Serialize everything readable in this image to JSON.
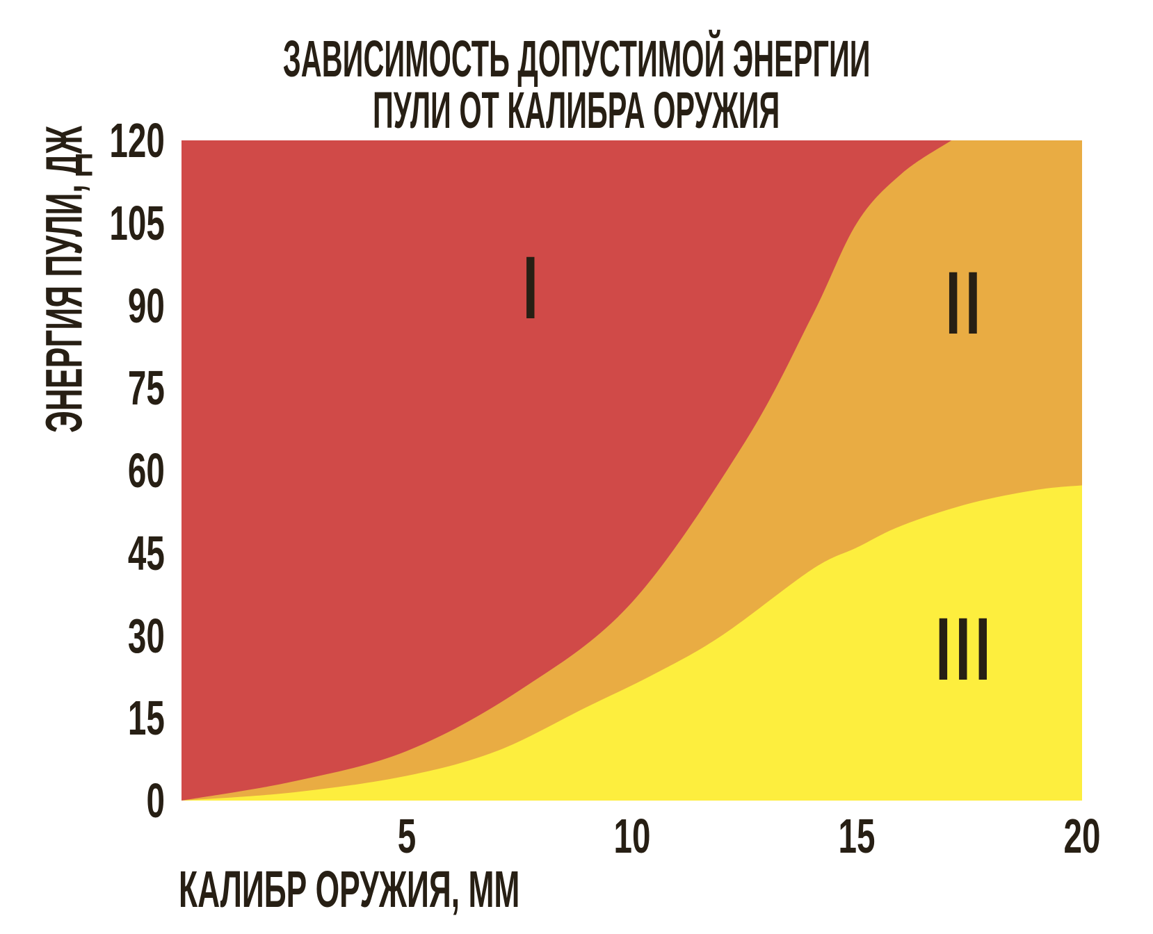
{
  "title": {
    "line1": "ЗАВИСИМОСТЬ ДОПУСТИМОЙ ЭНЕРГИИ",
    "line2": "ПУЛИ ОТ КАЛИБРА ОРУЖИЯ"
  },
  "axes": {
    "y_label": "ЭНЕРГИЯ ПУЛИ, ДЖ",
    "x_label": "КАЛИБР ОРУЖИЯ, ММ",
    "y_ticks": [
      120,
      105,
      90,
      75,
      60,
      45,
      30,
      15,
      0
    ],
    "x_ticks": [
      5,
      10,
      15,
      20
    ]
  },
  "colors": {
    "region_I": "#d04a48",
    "region_II": "#e9ac43",
    "region_III": "#fdee3e",
    "ink": "#271f14",
    "background": "#ffffff"
  },
  "chart_data": {
    "type": "area",
    "title": "ЗАВИСИМОСТЬ ДОПУСТИМОЙ ЭНЕРГИИ ПУЛИ ОТ КАЛИБРА ОРУЖИЯ",
    "xlabel": "КАЛИБР ОРУЖИЯ, ММ",
    "ylabel": "ЭНЕРГИЯ ПУЛИ, ДЖ",
    "xlim": [
      0,
      20
    ],
    "ylim": [
      0,
      120
    ],
    "x_ticks": [
      5,
      10,
      15,
      20
    ],
    "y_ticks": [
      0,
      15,
      30,
      45,
      60,
      75,
      90,
      105,
      120
    ],
    "grid": false,
    "legend": "none",
    "series": [
      {
        "name": "boundary_I_II",
        "description": "curve separating region I (red, above) from region II (orange, below); reaches top of chart at x≈17.1",
        "points": [
          [
            0,
            0
          ],
          [
            2.5,
            3.5
          ],
          [
            5,
            9
          ],
          [
            7.5,
            20
          ],
          [
            10,
            36
          ],
          [
            12.5,
            65
          ],
          [
            14,
            88
          ],
          [
            15,
            105
          ],
          [
            16,
            114
          ],
          [
            17.1,
            120
          ]
        ]
      },
      {
        "name": "boundary_II_III",
        "description": "curve separating region II (orange, above) from region III (yellow, below); flattens to ≈57 J at x=20",
        "points": [
          [
            0,
            0
          ],
          [
            2.5,
            1.5
          ],
          [
            5,
            4.5
          ],
          [
            7,
            9
          ],
          [
            9,
            17
          ],
          [
            10.5,
            23
          ],
          [
            12,
            30
          ],
          [
            14,
            42
          ],
          [
            15,
            46
          ],
          [
            16,
            50
          ],
          [
            17.5,
            54
          ],
          [
            19,
            56.5
          ],
          [
            20,
            57.3
          ]
        ]
      }
    ],
    "regions": [
      {
        "label": "I",
        "color": "#d04a48",
        "label_at": [
          7.8,
          93.1
        ]
      },
      {
        "label": "II",
        "color": "#e9ac43",
        "label_at": [
          17.4,
          90.3
        ]
      },
      {
        "label": "III",
        "color": "#fdee3e",
        "label_at": [
          17.4,
          27.4
        ]
      }
    ]
  }
}
